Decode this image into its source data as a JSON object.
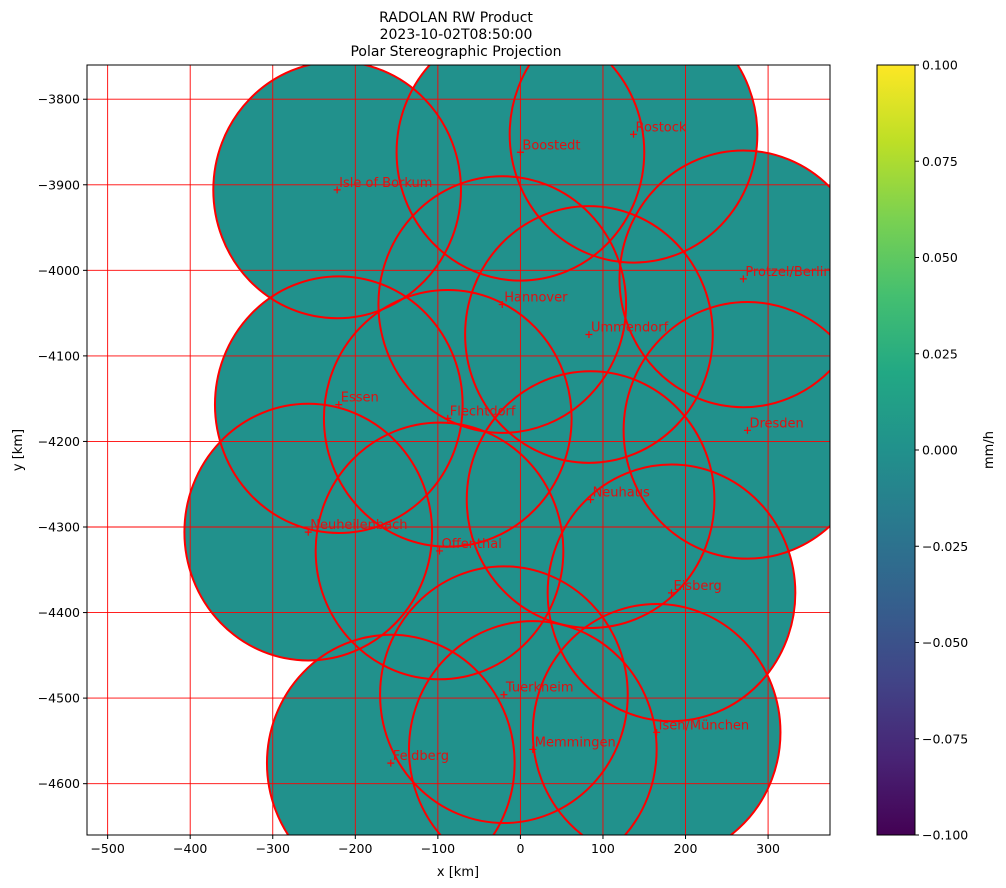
{
  "chart_data": {
    "type": "scatter",
    "title_lines": [
      "RADOLAN RW Product",
      "2023-10-02T08:50:00",
      "Polar Stereographic Projection"
    ],
    "xlabel": "x [km]",
    "ylabel": "y [km]",
    "xlim": [
      -525,
      375
    ],
    "ylim": [
      -4660,
      -3760
    ],
    "xticks": [
      -500,
      -400,
      -300,
      -200,
      -100,
      0,
      100,
      200,
      300
    ],
    "yticks": [
      -3800,
      -3900,
      -4000,
      -4100,
      -4200,
      -4300,
      -4400,
      -4500,
      -4600
    ],
    "grid": true,
    "grid_color": "#ff0000",
    "field_color": "#21918c",
    "ring_color": "#ff0000",
    "radar_range_km": 150,
    "field_value": 0.0,
    "sites": [
      {
        "name": "Boostedt",
        "x": 0,
        "y": -3862
      },
      {
        "name": "Rostock",
        "x": 137,
        "y": -3841
      },
      {
        "name": "Isle of Borkum",
        "x": -222,
        "y": -3906
      },
      {
        "name": "Protzel/Berlin",
        "x": 270,
        "y": -4010
      },
      {
        "name": "Hannover",
        "x": -22,
        "y": -4040
      },
      {
        "name": "Ummendorf",
        "x": 83,
        "y": -4075
      },
      {
        "name": "Essen",
        "x": -220,
        "y": -4157
      },
      {
        "name": "Flechtdorf",
        "x": -88,
        "y": -4173
      },
      {
        "name": "Dresden",
        "x": 275,
        "y": -4187
      },
      {
        "name": "Neuhaus",
        "x": 85,
        "y": -4268
      },
      {
        "name": "Neuheilenbach",
        "x": -257,
        "y": -4306
      },
      {
        "name": "Offenthal",
        "x": -98,
        "y": -4328
      },
      {
        "name": "Eisberg",
        "x": 183,
        "y": -4377
      },
      {
        "name": "Tuerkheim",
        "x": -20,
        "y": -4496
      },
      {
        "name": "Isen/München",
        "x": 165,
        "y": -4540
      },
      {
        "name": "Memmingen",
        "x": 15,
        "y": -4560
      },
      {
        "name": "Feldberg",
        "x": -157,
        "y": -4576
      }
    ],
    "colorbar": {
      "label": "mm/h",
      "colormap": "viridis",
      "range": [
        -0.1,
        0.1
      ],
      "tick_labels": [
        "0.100",
        "0.075",
        "0.050",
        "0.025",
        "0.000",
        "−0.025",
        "−0.050",
        "−0.075",
        "−0.100"
      ]
    }
  }
}
